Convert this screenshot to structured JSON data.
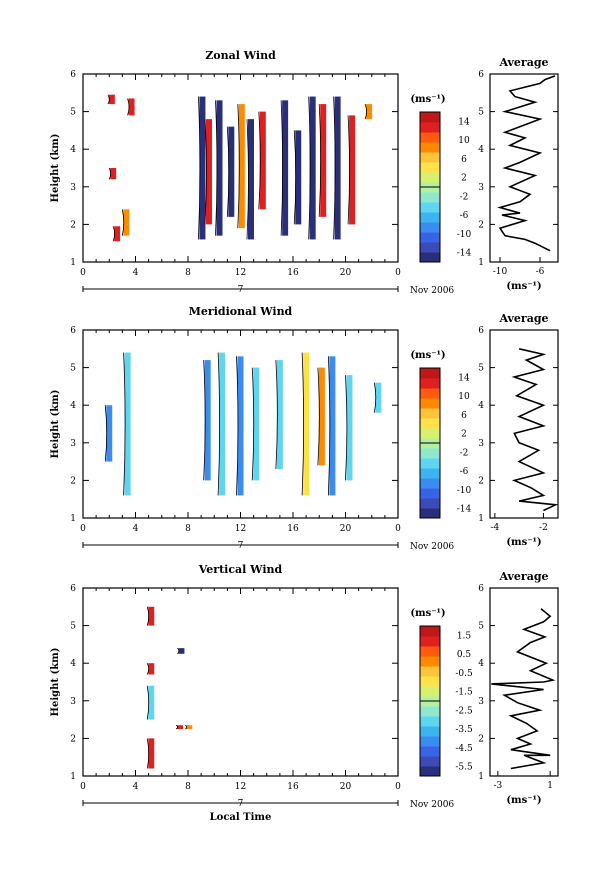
{
  "chart_data": [
    {
      "type": "heatmap",
      "title": "Zonal Wind",
      "ylabel": "Height (km)",
      "ylim": [
        1,
        6
      ],
      "yticks": [
        "1",
        "2",
        "3",
        "4",
        "5",
        "6"
      ],
      "xlim": [
        0,
        24
      ],
      "xticks": [
        "0",
        "4",
        "8",
        "12",
        "16",
        "20",
        "0"
      ],
      "date_marker": "7",
      "date_label": "Nov 2006",
      "colorbar": {
        "unit": "(ms⁻¹)",
        "ticks": [
          "14",
          "10",
          "6",
          "2",
          "-2",
          "-6",
          "-10",
          "-14"
        ],
        "range": [
          -16,
          16
        ]
      },
      "average": {
        "title": "Average",
        "xlabel": "(ms⁻¹)",
        "xlim": [
          -11,
          -4.2
        ],
        "xticks": [
          "-10",
          "-6"
        ],
        "xtick_values": [
          -10,
          -6
        ],
        "ylim": [
          1,
          6
        ],
        "yticks": [
          "1",
          "2",
          "3",
          "4",
          "5",
          "6"
        ],
        "profile": [
          [
            -5.0,
            1.3
          ],
          [
            -6.5,
            1.5
          ],
          [
            -7.5,
            1.6
          ],
          [
            -9.5,
            1.7
          ],
          [
            -10.0,
            1.9
          ],
          [
            -7.5,
            2.1
          ],
          [
            -9.8,
            2.25
          ],
          [
            -8.0,
            2.3
          ],
          [
            -10.0,
            2.45
          ],
          [
            -8.0,
            2.6
          ],
          [
            -7.0,
            2.8
          ],
          [
            -9.0,
            3.0
          ],
          [
            -6.5,
            3.3
          ],
          [
            -9.5,
            3.5
          ],
          [
            -8.0,
            3.65
          ],
          [
            -6.0,
            3.9
          ],
          [
            -9.0,
            4.1
          ],
          [
            -7.5,
            4.3
          ],
          [
            -9.5,
            4.45
          ],
          [
            -7.0,
            4.7
          ],
          [
            -6.0,
            4.8
          ],
          [
            -9.5,
            5.0
          ],
          [
            -6.5,
            5.25
          ],
          [
            -8.5,
            5.4
          ],
          [
            -9.0,
            5.55
          ],
          [
            -6.0,
            5.75
          ],
          [
            -5.5,
            5.85
          ],
          [
            -4.5,
            5.95
          ]
        ]
      },
      "swatches": [
        {
          "x": 2.2,
          "y0": 5.2,
          "y1": 5.45,
          "c": "#e02020"
        },
        {
          "x": 2.3,
          "y0": 3.2,
          "y1": 3.5,
          "c": "#e02020"
        },
        {
          "x": 2.6,
          "y0": 1.55,
          "y1": 1.95,
          "c": "#e02020"
        },
        {
          "x": 3.3,
          "y0": 1.7,
          "y1": 2.4,
          "c": "#ff8a00"
        },
        {
          "x": 3.7,
          "y0": 4.9,
          "y1": 5.35,
          "c": "#e02020"
        },
        {
          "x": 9.1,
          "y0": 1.6,
          "y1": 5.4,
          "c": "#2a2f7a"
        },
        {
          "x": 9.6,
          "y0": 2.0,
          "y1": 4.8,
          "c": "#e02020"
        },
        {
          "x": 10.4,
          "y0": 1.7,
          "y1": 5.3,
          "c": "#2a2f7a"
        },
        {
          "x": 11.3,
          "y0": 2.2,
          "y1": 4.6,
          "c": "#2a2f7a"
        },
        {
          "x": 12.1,
          "y0": 1.9,
          "y1": 5.2,
          "c": "#ff8a00"
        },
        {
          "x": 12.8,
          "y0": 1.6,
          "y1": 4.8,
          "c": "#2a2f7a"
        },
        {
          "x": 13.7,
          "y0": 2.4,
          "y1": 5.0,
          "c": "#e02020"
        },
        {
          "x": 15.4,
          "y0": 1.7,
          "y1": 5.3,
          "c": "#2a2f7a"
        },
        {
          "x": 16.4,
          "y0": 2.0,
          "y1": 4.5,
          "c": "#2a2f7a"
        },
        {
          "x": 17.5,
          "y0": 1.6,
          "y1": 5.4,
          "c": "#2a2f7a"
        },
        {
          "x": 18.3,
          "y0": 2.2,
          "y1": 5.2,
          "c": "#e02020"
        },
        {
          "x": 19.4,
          "y0": 1.6,
          "y1": 5.4,
          "c": "#2a2f7a"
        },
        {
          "x": 20.5,
          "y0": 2.0,
          "y1": 4.9,
          "c": "#e02020"
        },
        {
          "x": 21.8,
          "y0": 4.8,
          "y1": 5.2,
          "c": "#ff8a00"
        }
      ]
    },
    {
      "type": "heatmap",
      "title": "Meridional Wind",
      "ylabel": "Height (km)",
      "ylim": [
        1,
        6
      ],
      "yticks": [
        "1",
        "2",
        "3",
        "4",
        "5",
        "6"
      ],
      "xlim": [
        0,
        24
      ],
      "xticks": [
        "0",
        "4",
        "8",
        "12",
        "16",
        "20",
        "0"
      ],
      "date_marker": "7",
      "date_label": "Nov 2006",
      "colorbar": {
        "unit": "(ms⁻¹)",
        "ticks": [
          "14",
          "10",
          "6",
          "2",
          "-2",
          "-6",
          "-10",
          "-14"
        ],
        "range": [
          -16,
          16
        ]
      },
      "average": {
        "title": "Average",
        "xlabel": "(ms⁻¹)",
        "xlim": [
          -4.2,
          -1.4
        ],
        "xticks": [
          "-4",
          "-2"
        ],
        "xtick_values": [
          -4,
          -2
        ],
        "ylim": [
          1,
          6
        ],
        "yticks": [
          "1",
          "2",
          "3",
          "4",
          "5",
          "6"
        ],
        "profile": [
          [
            -2.0,
            1.2
          ],
          [
            -1.5,
            1.35
          ],
          [
            -3.0,
            1.45
          ],
          [
            -2.0,
            1.6
          ],
          [
            -2.5,
            1.8
          ],
          [
            -3.2,
            2.0
          ],
          [
            -2.0,
            2.2
          ],
          [
            -3.0,
            2.5
          ],
          [
            -2.2,
            2.8
          ],
          [
            -3.0,
            3.0
          ],
          [
            -3.2,
            3.25
          ],
          [
            -2.0,
            3.45
          ],
          [
            -3.0,
            3.7
          ],
          [
            -2.0,
            4.0
          ],
          [
            -3.1,
            4.25
          ],
          [
            -2.3,
            4.55
          ],
          [
            -3.2,
            4.75
          ],
          [
            -2.0,
            4.95
          ],
          [
            -2.7,
            5.2
          ],
          [
            -2.0,
            5.35
          ],
          [
            -3.0,
            5.5
          ]
        ]
      },
      "swatches": [
        {
          "x": 2.0,
          "y0": 2.5,
          "y1": 4.0,
          "c": "#3a8cf0"
        },
        {
          "x": 3.4,
          "y0": 1.6,
          "y1": 5.4,
          "c": "#5fd6f0"
        },
        {
          "x": 9.5,
          "y0": 2.0,
          "y1": 5.2,
          "c": "#3a8cf0"
        },
        {
          "x": 10.6,
          "y0": 1.6,
          "y1": 5.4,
          "c": "#5fd6f0"
        },
        {
          "x": 12.0,
          "y0": 1.6,
          "y1": 5.3,
          "c": "#3a8cf0"
        },
        {
          "x": 13.2,
          "y0": 2.0,
          "y1": 5.0,
          "c": "#5fd6f0"
        },
        {
          "x": 15.0,
          "y0": 2.3,
          "y1": 5.2,
          "c": "#5fd6f0"
        },
        {
          "x": 17.0,
          "y0": 1.6,
          "y1": 5.4,
          "c": "#ffe24a"
        },
        {
          "x": 18.2,
          "y0": 2.4,
          "y1": 5.0,
          "c": "#ff8a00"
        },
        {
          "x": 19.0,
          "y0": 1.6,
          "y1": 5.3,
          "c": "#3a8cf0"
        },
        {
          "x": 20.3,
          "y0": 2.0,
          "y1": 4.8,
          "c": "#5fd6f0"
        },
        {
          "x": 22.5,
          "y0": 3.8,
          "y1": 4.6,
          "c": "#5fd6f0"
        }
      ]
    },
    {
      "type": "heatmap",
      "title": "Vertical Wind",
      "ylabel": "Height (km)",
      "ylim": [
        1,
        6
      ],
      "yticks": [
        "1",
        "2",
        "3",
        "4",
        "5",
        "6"
      ],
      "xlim": [
        0,
        24
      ],
      "xticks": [
        "0",
        "4",
        "8",
        "12",
        "16",
        "20",
        "0"
      ],
      "date_marker": "7",
      "date_label": "Nov 2006",
      "xlabel": "Local Time",
      "colorbar": {
        "unit": "(ms⁻¹)",
        "ticks": [
          "1.5",
          "0.5",
          "-0.5",
          "-1.5",
          "-2.5",
          "-3.5",
          "-4.5",
          "-5.5"
        ],
        "range": [
          -6.0,
          2.0
        ]
      },
      "average": {
        "title": "Average",
        "xlabel": "(ms⁻¹)",
        "xlim": [
          -3.6,
          1.6
        ],
        "xticks": [
          "-3",
          "1"
        ],
        "xtick_values": [
          -3,
          1
        ],
        "ylim": [
          1,
          6
        ],
        "yticks": [
          "1",
          "2",
          "3",
          "4",
          "5",
          "6"
        ],
        "profile": [
          [
            -2.0,
            1.2
          ],
          [
            0.5,
            1.35
          ],
          [
            -1.0,
            1.55
          ],
          [
            1.0,
            1.55
          ],
          [
            -2.0,
            1.7
          ],
          [
            -0.5,
            1.85
          ],
          [
            -1.5,
            2.0
          ],
          [
            0.0,
            2.2
          ],
          [
            -0.8,
            2.4
          ],
          [
            -2.0,
            2.6
          ],
          [
            0.2,
            2.75
          ],
          [
            -1.5,
            2.95
          ],
          [
            -2.5,
            3.15
          ],
          [
            0.5,
            3.3
          ],
          [
            -3.5,
            3.45
          ],
          [
            0.5,
            3.5
          ],
          [
            1.2,
            3.55
          ],
          [
            -0.5,
            3.8
          ],
          [
            0.7,
            4.0
          ],
          [
            -1.5,
            4.3
          ],
          [
            -0.5,
            4.55
          ],
          [
            0.6,
            4.7
          ],
          [
            -1.0,
            4.9
          ],
          [
            0.5,
            5.1
          ],
          [
            1.0,
            5.25
          ],
          [
            0.3,
            5.45
          ]
        ]
      },
      "swatches": [
        {
          "x": 5.2,
          "y0": 5.0,
          "y1": 5.5,
          "c": "#e02020"
        },
        {
          "x": 5.2,
          "y0": 3.7,
          "y1": 4.0,
          "c": "#e02020"
        },
        {
          "x": 5.2,
          "y0": 2.5,
          "y1": 3.4,
          "c": "#5fd6f0"
        },
        {
          "x": 5.2,
          "y0": 1.2,
          "y1": 2.0,
          "c": "#e02020"
        },
        {
          "x": 7.5,
          "y0": 4.25,
          "y1": 4.4,
          "c": "#2a2f7a"
        },
        {
          "x": 7.4,
          "y0": 2.25,
          "y1": 2.35,
          "c": "#e02020"
        },
        {
          "x": 8.1,
          "y0": 2.25,
          "y1": 2.35,
          "c": "#ff8a00"
        }
      ]
    }
  ],
  "colormap": [
    "#2a2f7a",
    "#3b4bb8",
    "#3a64e6",
    "#3a8cf0",
    "#3cb4f0",
    "#5fd6f0",
    "#8ee8d0",
    "#b4f0a0",
    "#d8f070",
    "#ffe24a",
    "#ffc43a",
    "#ff8a00",
    "#ff5a10",
    "#e02020",
    "#c01818"
  ]
}
